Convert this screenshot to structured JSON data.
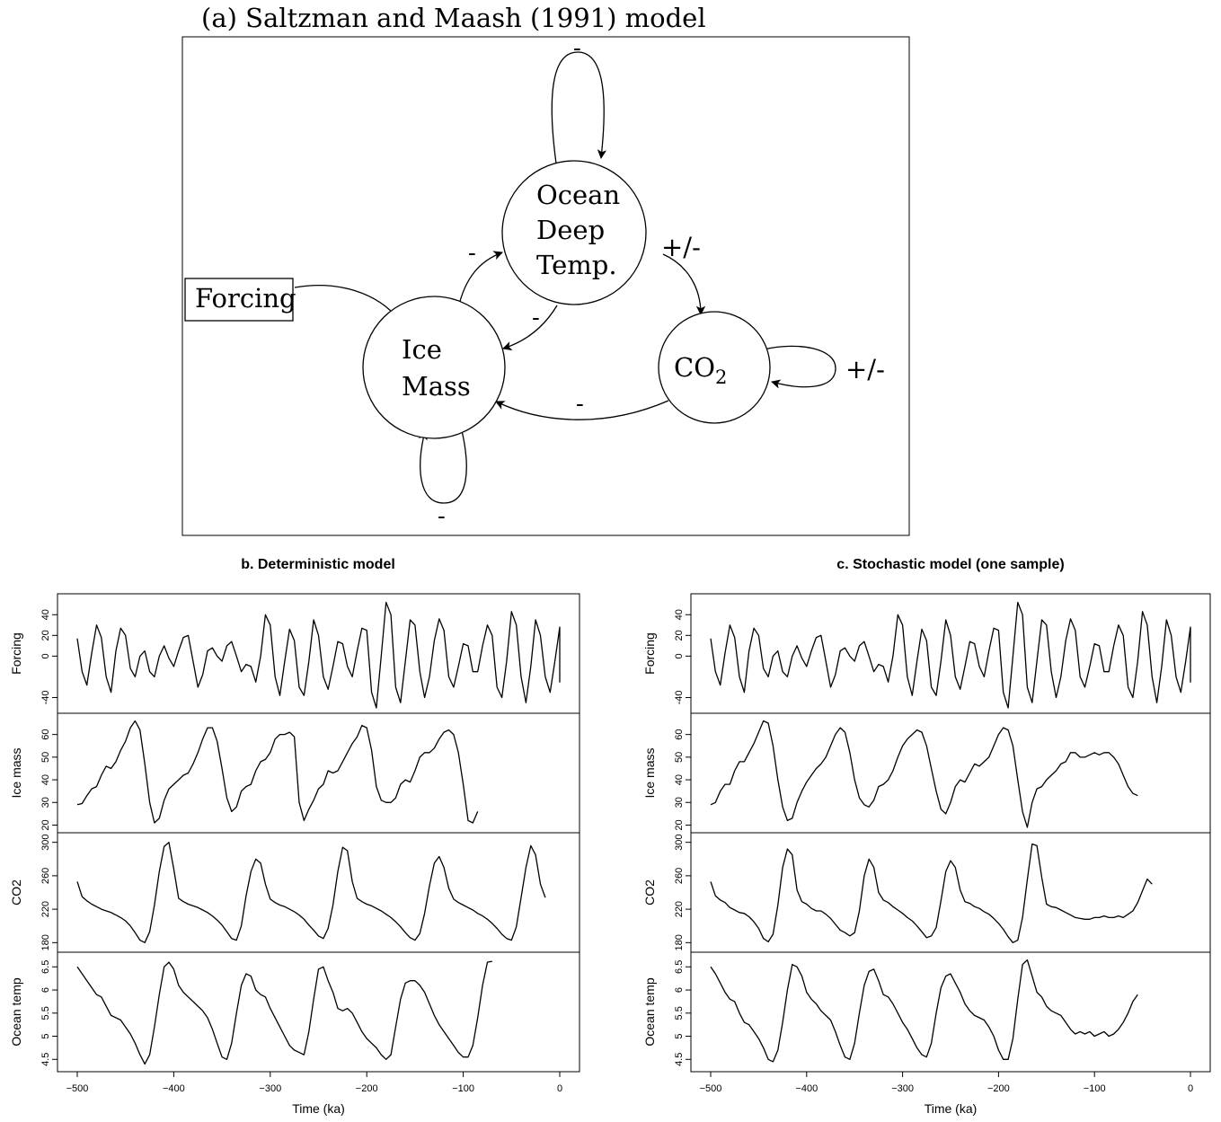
{
  "diagram": {
    "title": "(a) Saltzman and Maash (1991) model",
    "nodes": {
      "ocean": [
        "Ocean",
        "Deep",
        "Temp."
      ],
      "ice": [
        "Ice",
        "Mass"
      ],
      "co2_main": "CO",
      "co2_sub": "2",
      "forcing": "Forcing"
    },
    "edge_labels": {
      "ocean_self": "-",
      "ice_to_ocean": "-",
      "ocean_to_ice": "-",
      "ocean_to_co2": "+/-",
      "co2_self": "+/-",
      "co2_to_ice": "-",
      "ice_self": "-"
    }
  },
  "chart_data": [
    {
      "type": "line",
      "title": "b. Deterministic model",
      "xlabel": "Time (ka)",
      "xlim": [
        -500,
        0
      ],
      "xticks": [
        -500,
        -400,
        -300,
        -200,
        -100,
        0
      ],
      "x_step": 5,
      "panels": [
        {
          "ylabel": "Forcing",
          "ylim": [
            -50,
            55
          ],
          "yticks": [
            -40,
            0,
            20,
            40
          ],
          "values": [
            17,
            -15,
            -28,
            3,
            30,
            18,
            -20,
            -35,
            5,
            27,
            20,
            -12,
            -20,
            0,
            5,
            -15,
            -20,
            0,
            10,
            -2,
            -10,
            5,
            18,
            20,
            -5,
            -30,
            -18,
            5,
            8,
            0,
            -5,
            10,
            14,
            0,
            -15,
            -8,
            -10,
            -25,
            0,
            40,
            30,
            -20,
            -38,
            -5,
            26,
            15,
            -30,
            -38,
            -5,
            35,
            20,
            -20,
            -32,
            -10,
            14,
            12,
            -10,
            -20,
            5,
            27,
            25,
            -35,
            -50,
            0,
            52,
            40,
            -30,
            -45,
            -5,
            35,
            30,
            -15,
            -40,
            -20,
            15,
            36,
            25,
            -20,
            -30,
            -10,
            12,
            10,
            -15,
            -15,
            10,
            30,
            20,
            -30,
            -40,
            -5,
            43,
            30,
            -20,
            -45,
            -10,
            35,
            20,
            -20,
            -35,
            -5,
            28,
            20,
            -10,
            -25,
            -10,
            15,
            18,
            10,
            0,
            -5,
            -5,
            0,
            -10,
            -15,
            -5,
            10,
            28,
            22,
            -10
          ]
        },
        {
          "ylabel": "Ice mass",
          "ylim": [
            19,
            67
          ],
          "yticks": [
            20,
            30,
            40,
            50,
            60
          ],
          "values": [
            29,
            29.5,
            33,
            36,
            37,
            42,
            46,
            45,
            48,
            53,
            57,
            63,
            66,
            62,
            47,
            30,
            21,
            23,
            31,
            36,
            38,
            40,
            42,
            43,
            47,
            52,
            58,
            63,
            63,
            57,
            45,
            32,
            26,
            28,
            35,
            37,
            38,
            44,
            48,
            49,
            52,
            58,
            60,
            60,
            61,
            59,
            30,
            22,
            27,
            31,
            36,
            38,
            44,
            43,
            44,
            48,
            52,
            56,
            59,
            64,
            63,
            53,
            37,
            31,
            30,
            30,
            32,
            38,
            40,
            39,
            44,
            50,
            52,
            52,
            54,
            58,
            61,
            62,
            60,
            52,
            38,
            22,
            21,
            26
          ]
        },
        {
          "ylabel": "CO2",
          "ylim": [
            175,
            305
          ],
          "yticks": [
            180,
            220,
            260,
            300
          ],
          "values": [
            253,
            235,
            230,
            226,
            223,
            220,
            218,
            216,
            213,
            210,
            206,
            200,
            192,
            183,
            180,
            193,
            225,
            265,
            295,
            300,
            268,
            233,
            229,
            226,
            224,
            222,
            219,
            216,
            212,
            207,
            201,
            193,
            185,
            183,
            200,
            236,
            265,
            280,
            275,
            250,
            232,
            228,
            225,
            223,
            220,
            217,
            213,
            208,
            201,
            195,
            188,
            185,
            197,
            225,
            265,
            294,
            290,
            253,
            233,
            229,
            226,
            224,
            221,
            218,
            214,
            210,
            205,
            199,
            192,
            186,
            183,
            191,
            215,
            248,
            275,
            283,
            270,
            245,
            232,
            228,
            225,
            222,
            219,
            215,
            212,
            208,
            203,
            197,
            190,
            185,
            183,
            199,
            234,
            270,
            296,
            285,
            250,
            234
          ]
        },
        {
          "ylabel": "Ocean temp",
          "ylim": [
            4.35,
            6.7
          ],
          "yticks": [
            4.5,
            5.0,
            5.5,
            6.0,
            6.5
          ],
          "values": [
            6.5,
            6.35,
            6.2,
            6.05,
            5.9,
            5.85,
            5.65,
            5.45,
            5.4,
            5.35,
            5.2,
            5.05,
            4.85,
            4.6,
            4.4,
            4.6,
            5.2,
            5.9,
            6.5,
            6.6,
            6.45,
            6.1,
            5.95,
            5.85,
            5.75,
            5.65,
            5.55,
            5.4,
            5.15,
            4.85,
            4.55,
            4.5,
            4.85,
            5.5,
            6.1,
            6.35,
            6.3,
            6.0,
            5.9,
            5.85,
            5.6,
            5.4,
            5.2,
            5.0,
            4.8,
            4.7,
            4.65,
            4.6,
            5.1,
            5.8,
            6.45,
            6.5,
            6.2,
            5.95,
            5.6,
            5.55,
            5.6,
            5.5,
            5.3,
            5.1,
            4.95,
            4.85,
            4.75,
            4.6,
            4.5,
            4.6,
            5.2,
            5.8,
            6.15,
            6.2,
            6.2,
            6.1,
            5.95,
            5.7,
            5.45,
            5.25,
            5.1,
            4.95,
            4.8,
            4.65,
            4.55,
            4.55,
            4.8,
            5.4,
            6.1,
            6.6,
            6.62
          ]
        }
      ]
    },
    {
      "type": "line",
      "title": "c. Stochastic model (one sample)",
      "xlabel": "Time (ka)",
      "xlim": [
        -500,
        0
      ],
      "xticks": [
        -500,
        -400,
        -300,
        -200,
        -100,
        0
      ],
      "x_step": 5,
      "panels": [
        {
          "ylabel": "Forcing",
          "ylim": [
            -50,
            55
          ],
          "yticks": [
            -40,
            0,
            20,
            40
          ],
          "values": [
            17,
            -15,
            -28,
            3,
            30,
            18,
            -20,
            -35,
            5,
            27,
            20,
            -12,
            -20,
            0,
            5,
            -15,
            -20,
            0,
            10,
            -2,
            -10,
            5,
            18,
            20,
            -5,
            -30,
            -18,
            5,
            8,
            0,
            -5,
            10,
            14,
            0,
            -15,
            -8,
            -10,
            -25,
            0,
            40,
            30,
            -20,
            -38,
            -5,
            26,
            15,
            -30,
            -38,
            -5,
            35,
            20,
            -20,
            -32,
            -10,
            14,
            12,
            -10,
            -20,
            5,
            27,
            25,
            -35,
            -50,
            0,
            52,
            40,
            -30,
            -45,
            -5,
            35,
            30,
            -15,
            -40,
            -20,
            15,
            36,
            25,
            -20,
            -30,
            -10,
            12,
            10,
            -15,
            -15,
            10,
            30,
            20,
            -30,
            -40,
            -5,
            43,
            30,
            -20,
            -45,
            -10,
            35,
            20,
            -20,
            -35,
            -5,
            28,
            20,
            -10,
            -25,
            -10,
            15,
            18,
            10,
            0,
            -5,
            -5,
            0,
            -10,
            -15,
            -5,
            10,
            28,
            22,
            -10
          ]
        },
        {
          "ylabel": "Ice mass",
          "ylim": [
            19,
            67
          ],
          "yticks": [
            20,
            30,
            40,
            50,
            60
          ],
          "values": [
            29,
            30,
            35,
            38,
            38,
            44,
            48,
            48,
            52,
            56,
            61,
            66,
            65,
            55,
            40,
            28,
            22,
            23,
            30,
            35,
            39,
            42,
            45,
            47,
            50,
            55,
            60,
            63,
            61,
            52,
            40,
            32,
            29,
            28,
            31,
            37,
            38,
            40,
            44,
            50,
            55,
            58,
            60,
            62,
            61,
            55,
            45,
            35,
            27,
            25,
            30,
            37,
            40,
            39,
            43,
            47,
            46,
            48,
            50,
            55,
            60,
            63,
            62,
            55,
            40,
            26,
            19,
            30,
            36,
            37,
            40,
            42,
            44,
            47,
            48,
            52,
            52,
            50,
            50,
            51,
            52,
            51,
            52,
            52,
            50,
            47,
            42,
            37,
            34,
            33
          ]
        },
        {
          "ylabel": "CO2",
          "ylim": [
            175,
            305
          ],
          "yticks": [
            180,
            220,
            260,
            300
          ],
          "values": [
            253,
            236,
            231,
            228,
            222,
            219,
            216,
            215,
            211,
            205,
            197,
            185,
            181,
            190,
            225,
            270,
            292,
            285,
            243,
            229,
            226,
            221,
            218,
            218,
            214,
            209,
            202,
            195,
            192,
            188,
            192,
            218,
            260,
            280,
            270,
            240,
            231,
            228,
            223,
            219,
            215,
            210,
            206,
            200,
            193,
            186,
            188,
            198,
            230,
            265,
            278,
            270,
            243,
            229,
            227,
            223,
            221,
            217,
            214,
            209,
            203,
            196,
            187,
            180,
            183,
            210,
            255,
            298,
            296,
            258,
            226,
            223,
            222,
            219,
            216,
            213,
            210,
            209,
            208,
            208,
            210,
            210,
            212,
            210,
            210,
            212,
            210,
            214,
            218,
            228,
            242,
            256,
            250
          ]
        },
        {
          "ylabel": "Ocean temp",
          "ylim": [
            4.35,
            6.7
          ],
          "yticks": [
            4.5,
            5.0,
            5.5,
            6.0,
            6.5
          ],
          "values": [
            6.5,
            6.35,
            6.15,
            5.95,
            5.8,
            5.75,
            5.5,
            5.3,
            5.25,
            5.1,
            4.95,
            4.75,
            4.5,
            4.45,
            4.7,
            5.3,
            6.0,
            6.55,
            6.5,
            6.3,
            5.95,
            5.8,
            5.7,
            5.55,
            5.45,
            5.35,
            5.1,
            4.8,
            4.55,
            4.5,
            4.85,
            5.5,
            6.1,
            6.4,
            6.45,
            6.2,
            5.9,
            5.85,
            5.7,
            5.5,
            5.3,
            5.15,
            4.95,
            4.75,
            4.6,
            4.55,
            4.85,
            5.5,
            6.05,
            6.3,
            6.35,
            6.15,
            5.95,
            5.7,
            5.55,
            5.45,
            5.4,
            5.35,
            5.2,
            5.0,
            4.7,
            4.5,
            4.5,
            4.95,
            5.8,
            6.55,
            6.65,
            6.3,
            5.95,
            5.85,
            5.65,
            5.55,
            5.5,
            5.45,
            5.3,
            5.15,
            5.05,
            5.1,
            5.05,
            5.1,
            5.0,
            5.05,
            5.1,
            5.0,
            5.05,
            5.15,
            5.3,
            5.5,
            5.75,
            5.9
          ]
        }
      ]
    }
  ]
}
